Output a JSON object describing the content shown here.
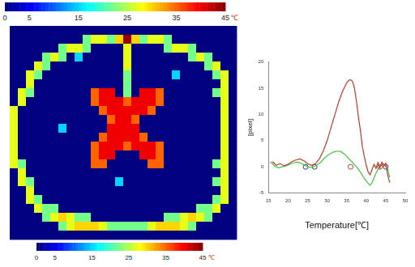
{
  "temperature_map": {
    "color_range": [
      0,
      45
    ],
    "colorbars": [
      {
        "range": [
          0,
          45
        ],
        "ticks": [
          0,
          5,
          15,
          25,
          35,
          45
        ],
        "unit": "℃"
      },
      {
        "range": [
          0,
          45
        ],
        "ticks": [
          0,
          5,
          15,
          25,
          35,
          45
        ],
        "unit": "℃"
      }
    ],
    "cells": [
      [
        0,
        0,
        0,
        0,
        0,
        0,
        0,
        0,
        0,
        0,
        0,
        0,
        0,
        0,
        0,
        0,
        0,
        0,
        0,
        0,
        0,
        0,
        0,
        0,
        0,
        0,
        0,
        0
      ],
      [
        0,
        0,
        0,
        0,
        0,
        0,
        0,
        0,
        0,
        22,
        27,
        27,
        22,
        30,
        44,
        30,
        22,
        27,
        27,
        22,
        0,
        0,
        0,
        0,
        0,
        0,
        0,
        0
      ],
      [
        0,
        0,
        0,
        0,
        0,
        0,
        22,
        27,
        27,
        22,
        0,
        0,
        0,
        0,
        27,
        0,
        0,
        0,
        0,
        22,
        27,
        27,
        22,
        0,
        0,
        0,
        0,
        0
      ],
      [
        0,
        0,
        0,
        0,
        22,
        27,
        22,
        0,
        15,
        0,
        0,
        0,
        0,
        0,
        27,
        0,
        0,
        0,
        0,
        0,
        0,
        0,
        22,
        27,
        22,
        0,
        0,
        0
      ],
      [
        0,
        0,
        0,
        27,
        22,
        0,
        0,
        0,
        0,
        0,
        0,
        0,
        0,
        0,
        27,
        0,
        0,
        0,
        0,
        0,
        0,
        0,
        0,
        0,
        22,
        27,
        0,
        0
      ],
      [
        0,
        0,
        27,
        22,
        0,
        0,
        0,
        0,
        0,
        0,
        0,
        0,
        0,
        0,
        22,
        0,
        0,
        0,
        0,
        0,
        15,
        0,
        0,
        0,
        0,
        22,
        27,
        0
      ],
      [
        0,
        0,
        27,
        0,
        0,
        0,
        0,
        0,
        0,
        0,
        0,
        0,
        0,
        0,
        22,
        0,
        0,
        0,
        0,
        0,
        0,
        0,
        0,
        0,
        0,
        0,
        27,
        0
      ],
      [
        0,
        27,
        22,
        0,
        0,
        0,
        0,
        0,
        0,
        0,
        35,
        40,
        40,
        0,
        22,
        0,
        40,
        40,
        35,
        0,
        0,
        0,
        0,
        0,
        0,
        22,
        27,
        0
      ],
      [
        0,
        27,
        0,
        0,
        0,
        0,
        0,
        0,
        0,
        0,
        35,
        40,
        40,
        40,
        35,
        40,
        40,
        40,
        35,
        0,
        0,
        0,
        0,
        0,
        0,
        0,
        27,
        0
      ],
      [
        27,
        0,
        0,
        0,
        0,
        0,
        0,
        0,
        0,
        0,
        0,
        35,
        40,
        40,
        40,
        40,
        40,
        35,
        0,
        0,
        0,
        0,
        0,
        0,
        0,
        0,
        27,
        0
      ],
      [
        27,
        0,
        0,
        0,
        0,
        0,
        0,
        0,
        0,
        0,
        0,
        0,
        35,
        40,
        40,
        35,
        0,
        0,
        0,
        0,
        0,
        0,
        0,
        0,
        0,
        0,
        27,
        0
      ],
      [
        27,
        0,
        0,
        0,
        0,
        0,
        15,
        0,
        0,
        0,
        0,
        0,
        40,
        40,
        40,
        40,
        0,
        0,
        0,
        0,
        0,
        0,
        0,
        0,
        0,
        0,
        27,
        0
      ],
      [
        27,
        0,
        0,
        0,
        0,
        0,
        0,
        0,
        0,
        0,
        0,
        35,
        40,
        40,
        40,
        40,
        35,
        0,
        0,
        0,
        0,
        0,
        0,
        0,
        0,
        0,
        27,
        0
      ],
      [
        27,
        0,
        0,
        0,
        0,
        0,
        0,
        0,
        0,
        0,
        35,
        40,
        40,
        40,
        35,
        40,
        40,
        40,
        35,
        0,
        0,
        0,
        0,
        0,
        0,
        0,
        27,
        0
      ],
      [
        27,
        0,
        0,
        0,
        0,
        0,
        0,
        0,
        0,
        0,
        35,
        40,
        40,
        0,
        0,
        0,
        40,
        40,
        35,
        0,
        0,
        0,
        0,
        0,
        0,
        0,
        27,
        0
      ],
      [
        27,
        22,
        0,
        0,
        0,
        0,
        0,
        0,
        0,
        0,
        35,
        35,
        0,
        0,
        0,
        0,
        0,
        35,
        35,
        0,
        0,
        0,
        0,
        0,
        0,
        22,
        27,
        0
      ],
      [
        0,
        27,
        0,
        0,
        0,
        0,
        0,
        0,
        0,
        0,
        0,
        0,
        0,
        0,
        0,
        0,
        0,
        0,
        0,
        0,
        0,
        0,
        0,
        0,
        0,
        0,
        27,
        0
      ],
      [
        0,
        27,
        22,
        0,
        0,
        0,
        0,
        0,
        0,
        0,
        0,
        0,
        0,
        15,
        0,
        0,
        0,
        0,
        0,
        0,
        0,
        0,
        0,
        0,
        0,
        22,
        27,
        0
      ],
      [
        0,
        0,
        27,
        0,
        0,
        0,
        0,
        0,
        0,
        0,
        0,
        0,
        0,
        0,
        0,
        0,
        0,
        0,
        0,
        0,
        0,
        0,
        0,
        0,
        0,
        0,
        27,
        0
      ],
      [
        0,
        0,
        27,
        22,
        0,
        0,
        0,
        0,
        0,
        0,
        0,
        0,
        0,
        0,
        0,
        0,
        0,
        0,
        0,
        0,
        0,
        0,
        0,
        0,
        0,
        22,
        27,
        0
      ],
      [
        0,
        0,
        0,
        27,
        22,
        22,
        0,
        0,
        0,
        0,
        0,
        0,
        0,
        0,
        0,
        0,
        0,
        0,
        0,
        0,
        0,
        0,
        0,
        22,
        22,
        27,
        0,
        0
      ],
      [
        0,
        0,
        0,
        0,
        22,
        27,
        30,
        27,
        22,
        22,
        0,
        0,
        0,
        0,
        0,
        0,
        0,
        0,
        0,
        22,
        22,
        27,
        30,
        27,
        22,
        0,
        0,
        0
      ],
      [
        0,
        0,
        0,
        0,
        0,
        0,
        22,
        27,
        30,
        30,
        30,
        27,
        22,
        22,
        22,
        22,
        22,
        27,
        30,
        30,
        30,
        27,
        22,
        0,
        0,
        0,
        0,
        0
      ],
      [
        0,
        0,
        0,
        0,
        0,
        0,
        0,
        0,
        0,
        0,
        0,
        0,
        0,
        0,
        0,
        0,
        0,
        0,
        0,
        0,
        0,
        0,
        0,
        0,
        0,
        0,
        0,
        0
      ]
    ]
  },
  "chart_data": {
    "type": "line",
    "x_label": "Temperature[℃]",
    "y_label": "[pixel]",
    "xlim": [
      15,
      50
    ],
    "xticks": [
      15,
      20,
      25,
      30,
      35,
      40,
      45,
      50
    ],
    "ylim": [
      -5,
      20
    ],
    "yticks": [
      -5,
      0,
      5,
      10,
      15,
      20
    ],
    "grid": false,
    "series": [
      {
        "color": "#c0392b",
        "x": [
          16,
          17,
          18,
          19,
          20,
          21,
          22,
          23,
          24,
          25,
          26,
          27,
          28,
          29,
          30,
          31,
          32,
          33,
          34,
          35,
          35.5,
          36,
          36.5,
          37,
          37.5,
          38,
          38.5,
          39,
          39.5,
          40,
          40.5,
          41,
          41.5,
          42,
          42.5,
          43,
          43.5,
          44,
          44.5,
          45,
          45.5,
          46
        ],
        "values": [
          1,
          0.3,
          0.6,
          0.2,
          0.5,
          1.0,
          1.3,
          1.5,
          1.2,
          0.6,
          0.3,
          0.6,
          1.5,
          3.0,
          5.0,
          7.5,
          10.0,
          12.5,
          14.5,
          16.0,
          16.5,
          16.6,
          16.3,
          15.0,
          12.5,
          9.5,
          7.0,
          4.0,
          2.0,
          0.3,
          -1.0,
          -1.5,
          -0.5,
          0.5,
          -0.3,
          0.8,
          -0.2,
          0.9,
          0.1,
          0.7,
          -1.5,
          -3.0
        ]
      },
      {
        "color": "#3cc83c",
        "x": [
          15.5,
          16.5,
          17.5,
          18.5,
          19.5,
          20.5,
          21.5,
          22.5,
          23.5,
          24.5,
          25.5,
          26.5,
          27.5,
          28.5,
          29.5,
          30.5,
          31.5,
          32.5,
          33.5,
          34.5,
          35.5,
          36.5,
          37.5,
          38.5,
          39.5,
          40.5,
          41,
          41.5,
          42.5,
          43.5,
          44.5,
          45.5,
          46
        ],
        "values": [
          1.0,
          0.2,
          -0.2,
          0.0,
          0.2,
          0.5,
          0.8,
          0.9,
          0.6,
          0.2,
          -0.1,
          0.0,
          0.4,
          1.0,
          1.8,
          2.4,
          2.8,
          3.0,
          2.9,
          2.4,
          1.6,
          0.8,
          0.0,
          -1.0,
          -2.2,
          -3.2,
          -3.5,
          -3.0,
          -1.2,
          0.2,
          0.6,
          -0.5,
          -2.0
        ]
      },
      {
        "type": "scatter",
        "marker": "circle",
        "x": [
          24.5,
          26.8,
          36.0,
          43.5,
          45.0
        ],
        "values": [
          0,
          0,
          0,
          0,
          0
        ],
        "colors": [
          "#2b3f9e",
          "#2b3f9e",
          "#c0392b",
          "#c0392b",
          "#2b3f9e"
        ]
      }
    ]
  }
}
